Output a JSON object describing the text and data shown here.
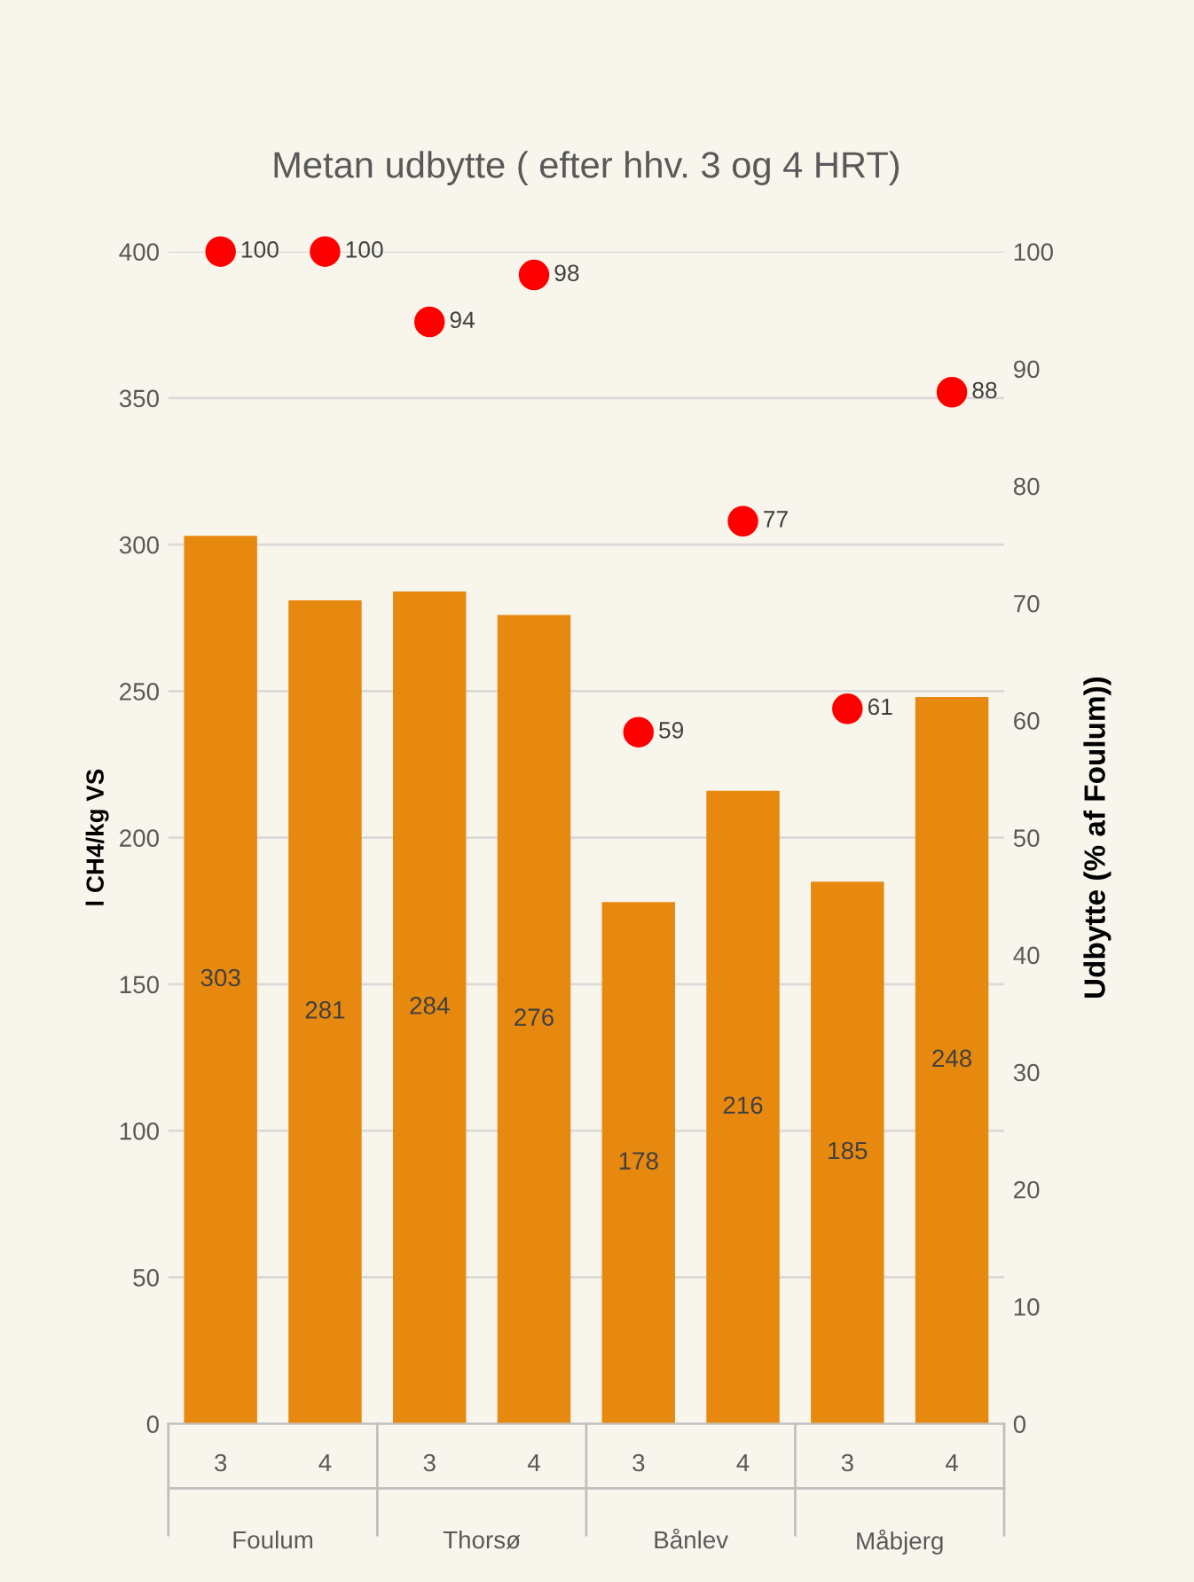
{
  "chart_data": {
    "type": "bar",
    "title": "Metan udbytte ( efter hhv. 3 og 4 HRT)",
    "ylabel": "l CH4/kg VS",
    "y2label": "Udbytte (% af Foulum))",
    "categories": [
      "3",
      "4",
      "3",
      "4",
      "3",
      "4",
      "3",
      "4"
    ],
    "series": [
      {
        "type": "bar",
        "color": "#e8890f",
        "values": [
          303,
          281,
          284,
          276,
          178,
          216,
          185,
          248
        ]
      },
      {
        "type": "scatter",
        "axis": "y2",
        "color": "#ff0000",
        "marker": "circle",
        "values": [
          100,
          100,
          94,
          98,
          59,
          77,
          61,
          88
        ]
      }
    ],
    "annotations": [
      "Foulum",
      "Thorsø",
      "Bånlev",
      "Måbjerg"
    ],
    "ylim": [
      0,
      400
    ],
    "yticks": [
      0,
      50,
      100,
      150,
      200,
      250,
      300,
      350,
      400
    ],
    "y2lim": [
      0,
      100
    ],
    "y2ticks": [
      0,
      10,
      20,
      30,
      40,
      50,
      60,
      70,
      80,
      90,
      100
    ],
    "grid": "y",
    "data_labels": true
  }
}
